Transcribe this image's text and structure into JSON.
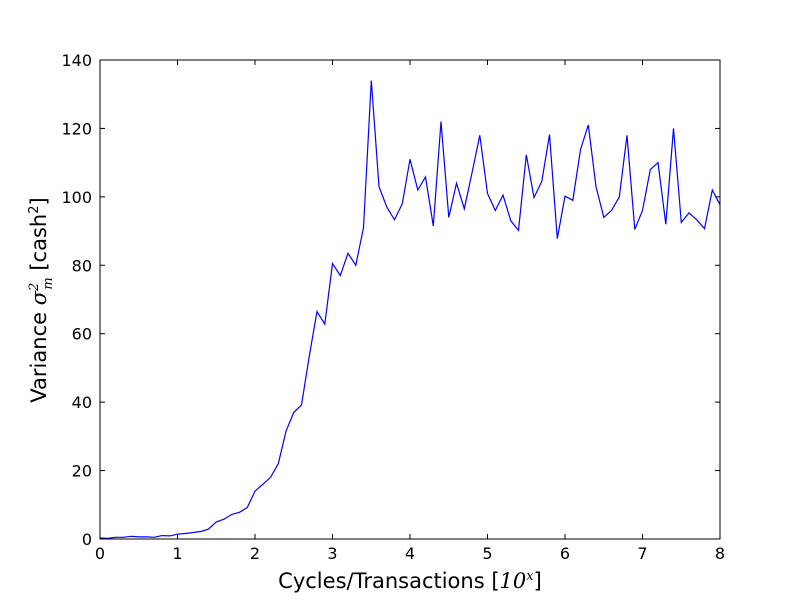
{
  "chart_data": {
    "type": "line",
    "xlabel": "Cycles/Transactions [10^x]",
    "ylabel": "Variance σ_m² [cash²]",
    "xlim": [
      0,
      8
    ],
    "ylim": [
      0,
      140
    ],
    "x_ticks": [
      0,
      1,
      2,
      3,
      4,
      5,
      6,
      7,
      8
    ],
    "y_ticks": [
      0,
      20,
      40,
      60,
      80,
      100,
      120,
      140
    ],
    "x_tick_labels": [
      "0",
      "1",
      "2",
      "3",
      "4",
      "5",
      "6",
      "7",
      "8"
    ],
    "y_tick_labels": [
      "0",
      "20",
      "40",
      "60",
      "80",
      "100",
      "120",
      "140"
    ],
    "grid": false,
    "line_color": "#0000ff",
    "series": [
      {
        "x": [
          0.0,
          0.1,
          0.2,
          0.3,
          0.4,
          0.5,
          0.6,
          0.7,
          0.8,
          0.9,
          1.0,
          1.1,
          1.2,
          1.3,
          1.4,
          1.5,
          1.6,
          1.7,
          1.8,
          1.9,
          2.0,
          2.1,
          2.2,
          2.3,
          2.4,
          2.5,
          2.6,
          2.7,
          2.8,
          2.9,
          3.0,
          3.1,
          3.2,
          3.3,
          3.4,
          3.5,
          3.6,
          3.7,
          3.8,
          3.9,
          4.0,
          4.1,
          4.2,
          4.3,
          4.4,
          4.5,
          4.6,
          4.7,
          4.8,
          4.9,
          5.0,
          5.1,
          5.2,
          5.3,
          5.4,
          5.5,
          5.6,
          5.7,
          5.8,
          5.9,
          6.0,
          6.1,
          6.2,
          6.3,
          6.4,
          6.5,
          6.6,
          6.7,
          6.8,
          6.9,
          7.0,
          7.1,
          7.2,
          7.3,
          7.4,
          7.5,
          7.6,
          7.7,
          7.8,
          7.9,
          8.0
        ],
        "y": [
          0.3,
          0.2,
          0.5,
          0.5,
          0.8,
          0.6,
          0.6,
          0.5,
          1.0,
          0.9,
          1.4,
          1.6,
          1.9,
          2.2,
          2.9,
          5.0,
          5.8,
          7.2,
          7.8,
          9.2,
          14.0,
          16.0,
          18.0,
          22.0,
          31.5,
          37.0,
          39.2,
          53.5,
          66.5,
          62.8,
          80.5,
          77.0,
          83.5,
          80.0,
          91.0,
          134.0,
          103.0,
          97.0,
          93.3,
          98.0,
          111.0,
          102.0,
          105.8,
          91.5,
          122.0,
          94.0,
          104.0,
          96.5,
          107.0,
          118.0,
          101.0,
          96.0,
          100.5,
          93.0,
          90.2,
          112.3,
          99.8,
          104.5,
          118.2,
          87.8,
          100.2,
          99.0,
          113.8,
          121.0,
          103.0,
          94.0,
          96.0,
          100.0,
          118.0,
          90.5,
          96.0,
          108.0,
          110.0,
          92.0,
          120.0,
          92.5,
          95.3,
          93.3,
          90.7,
          102.0,
          97.7
        ]
      }
    ]
  }
}
